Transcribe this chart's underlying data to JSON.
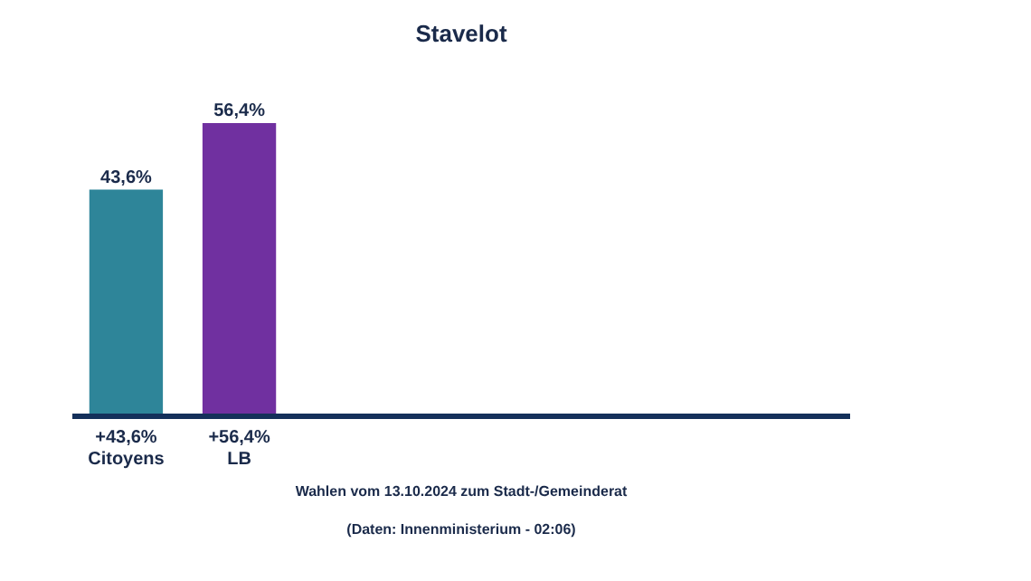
{
  "chart_data": {
    "type": "bar",
    "title": "Stavelot",
    "categories": [
      "+43,6%\nCitoyens",
      "+56,4%\nLB"
    ],
    "values": [
      43.6,
      56.4
    ],
    "colors": [
      "#2e8599",
      "#7030a0"
    ],
    "value_labels": [
      "43,6%",
      "56,4%"
    ],
    "annotations": [
      "Wahlen vom 13.10.2024 zum Stadt-/Gemeinderat",
      "(Daten: Innenministerium - 02:06)"
    ],
    "grid": false
  }
}
